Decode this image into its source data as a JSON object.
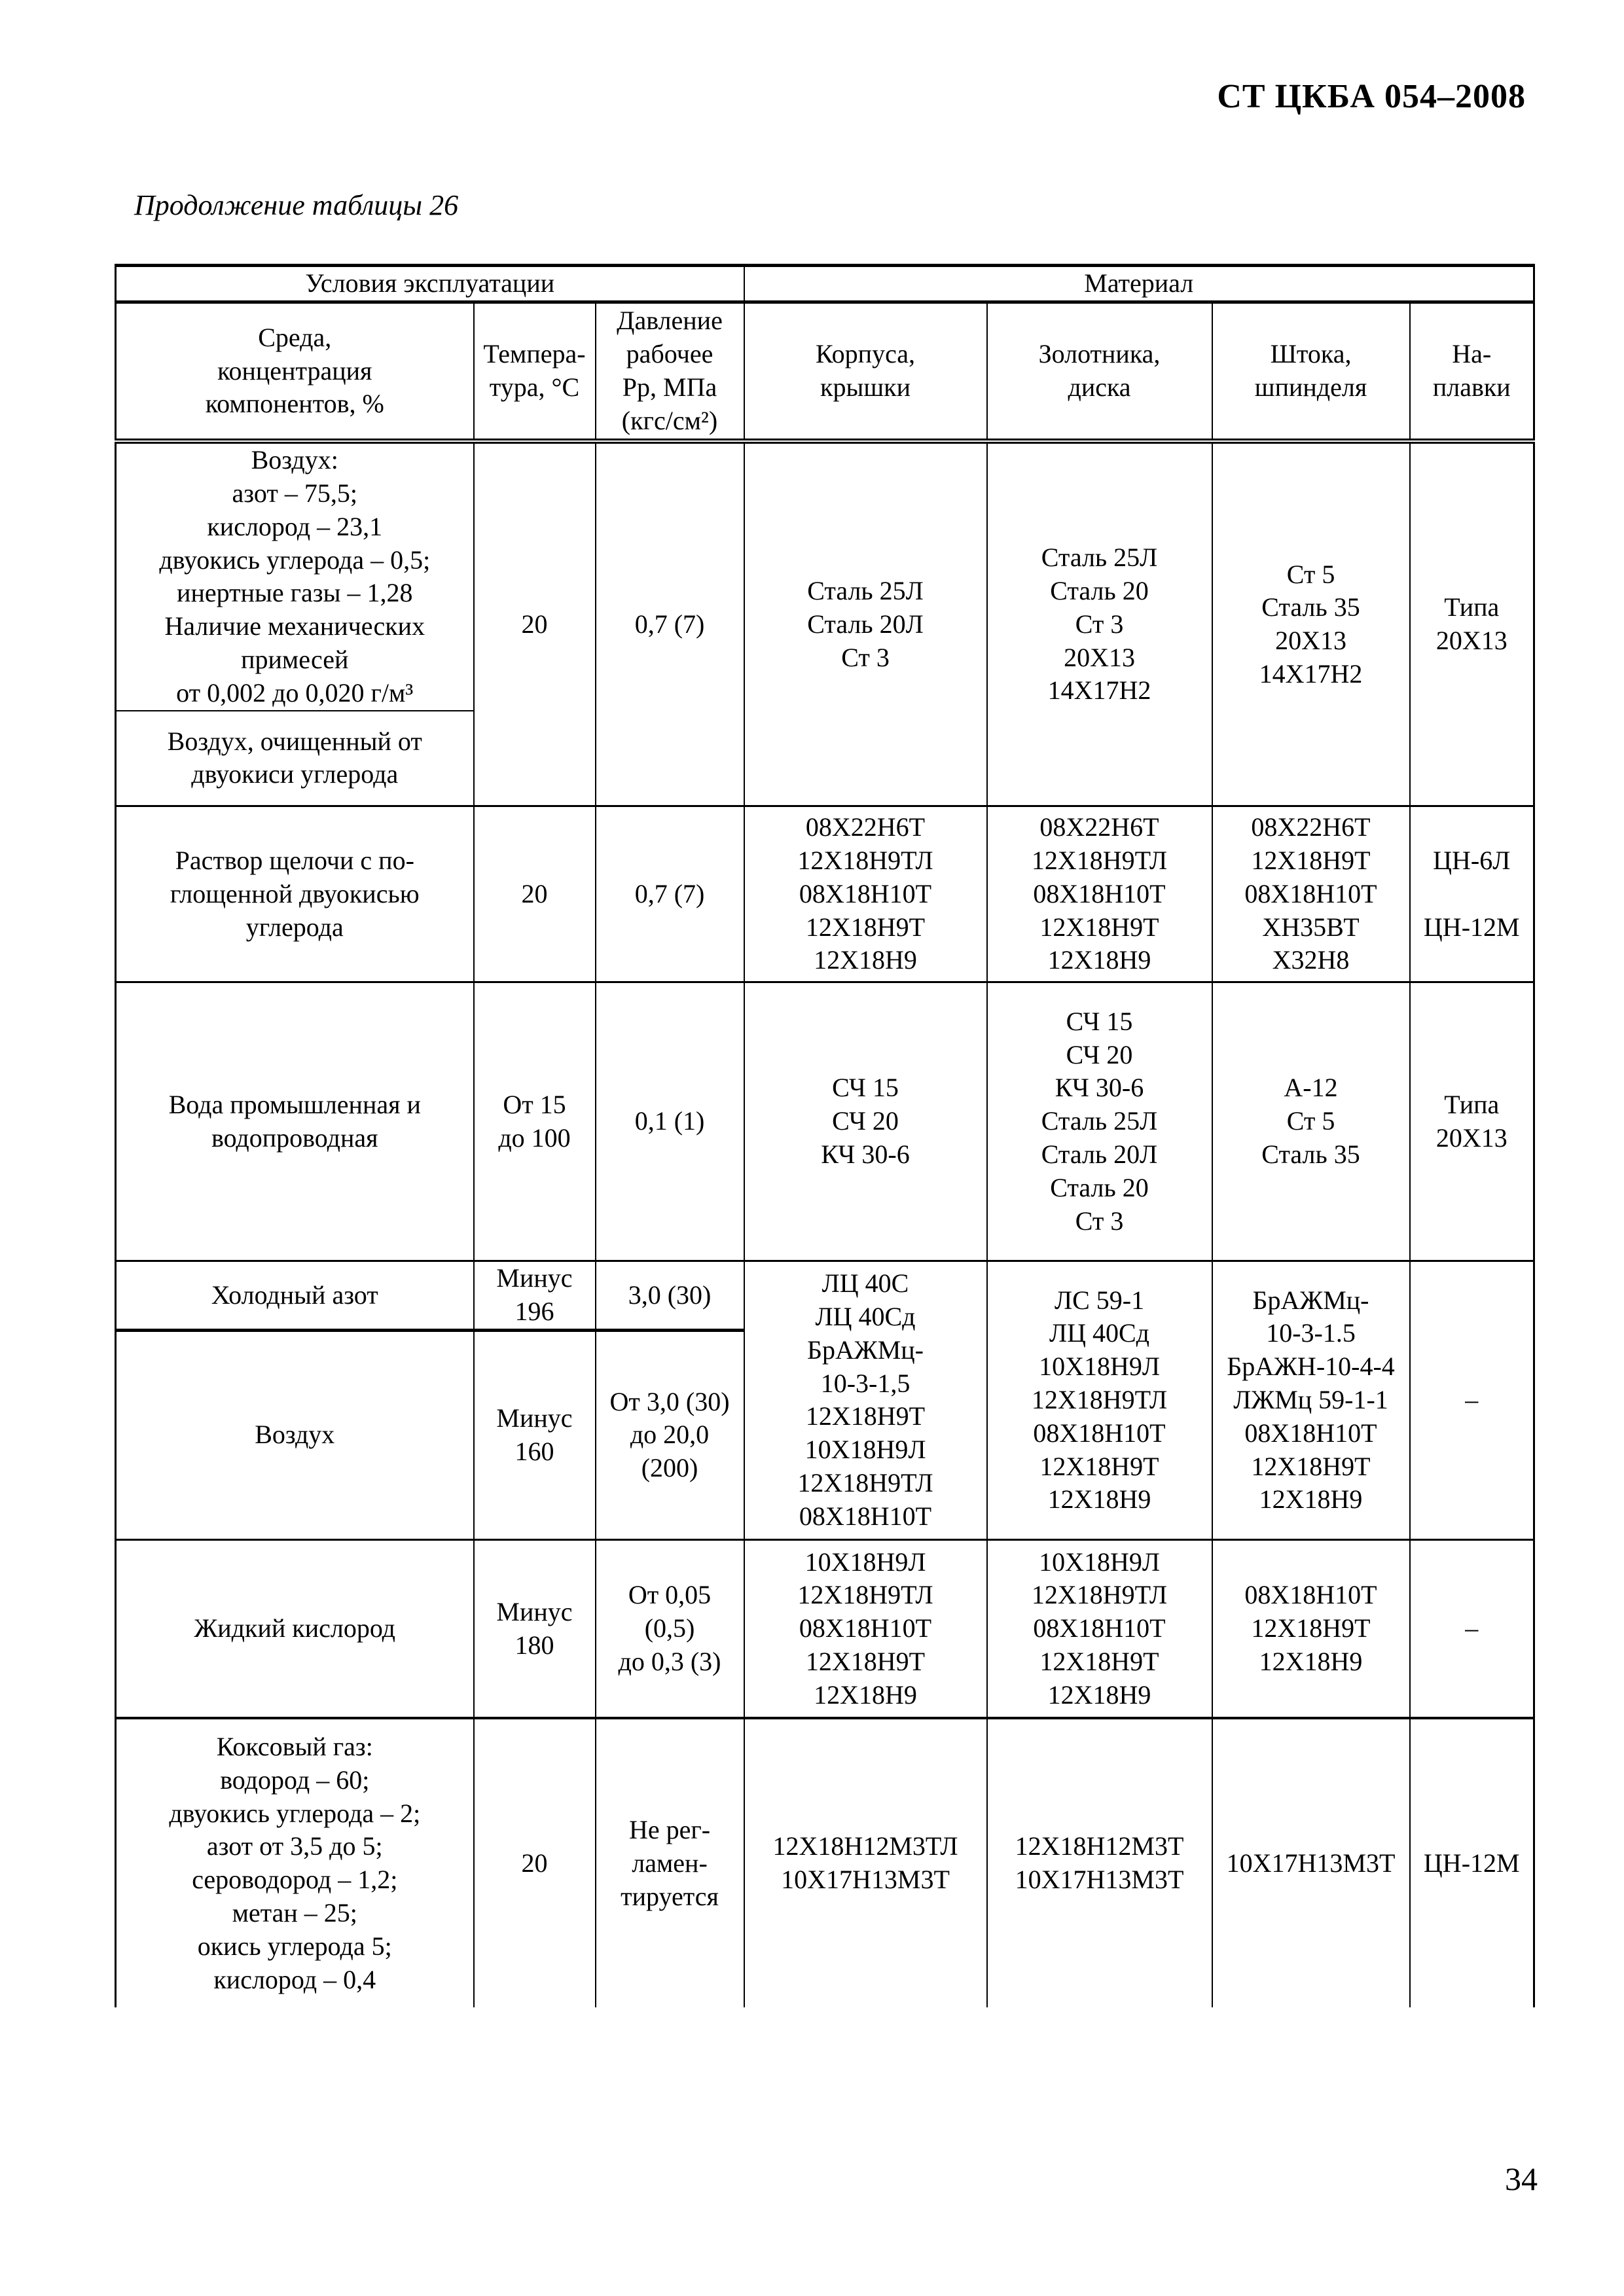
{
  "page": {
    "standard_ref": "СТ ЦКБА 054–2008",
    "caption": "Продолжение таблицы 26",
    "page_number": "34",
    "ink_color": "#000000",
    "paper_color": "#ffffff"
  },
  "table": {
    "groups": {
      "conditions": "Условия эксплуатации",
      "material": "Материал"
    },
    "columns": {
      "media": "Среда,\nконцентрация\nкомпонентов, %",
      "temperature": "Темпера-\nтура, °С",
      "pressure": "Давление\nрабочее\nРр, МПа\n(кгс/см²)",
      "body": "Корпуса,\nкрышки",
      "disc": "Золотника,\nдиска",
      "stem": "Штока,\nшпинделя",
      "overlay": "На-\nплавки"
    },
    "rows": {
      "air_normal": {
        "media_main": "Воздух:\nазот – 75,5;\nкислород – 23,1\nдвуокись углерода – 0,5;\nинертные газы – 1,28\nНаличие механических\nпримесей\nот 0,002 до 0,020 г/м³",
        "media_sub": "Воздух, очищенный от\nдвуокиси углерода",
        "temperature": "20",
        "pressure": "0,7 (7)",
        "body": "Сталь 25Л\nСталь 20Л\nСт 3",
        "disc": "Сталь 25Л\nСталь 20\nСт 3\n20Х13\n14Х17Н2",
        "stem": "Ст 5\nСталь 35\n20Х13\n14Х17Н2",
        "overlay": "Типа\n20Х13"
      },
      "alkali_solution": {
        "media": "Раствор щелочи с по-\nглощенной двуокисью\nуглерода",
        "temperature": "20",
        "pressure": "0,7 (7)",
        "body": "08Х22Н6Т\n12Х18Н9ТЛ\n08Х18Н10Т\n12Х18Н9Т\n12Х18Н9",
        "disc": "08Х22Н6Т\n12Х18Н9ТЛ\n08Х18Н10Т\n12Х18Н9Т\n12Х18Н9",
        "stem": "08Х22Н6Т\n12Х18Н9Т\n08Х18Н10Т\nХН35ВТ\nХ32Н8",
        "overlay": "ЦН-6Л\n\nЦН-12М"
      },
      "industrial_water": {
        "media": "Вода промышленная и\nводопроводная",
        "temperature": "От 15\nдо 100",
        "pressure": "0,1 (1)",
        "body": "СЧ 15\nСЧ 20\nКЧ 30-6",
        "disc": "СЧ 15\nСЧ 20\nКЧ 30-6\nСталь 25Л\nСталь 20Л\nСталь 20\nСт 3",
        "stem": "А-12\nСт 5\nСталь 35",
        "overlay": "Типа\n20Х13"
      },
      "cold_nitrogen": {
        "media": "Холодный азот",
        "temperature": "Минус\n196",
        "pressure": "3,0 (30)"
      },
      "cold_air": {
        "media": "Воздух",
        "temperature": "Минус\n160",
        "pressure": "От 3,0 (30)\nдо 20,0\n(200)"
      },
      "nitrogen_air_shared": {
        "body": "ЛЦ 40С\nЛЦ 40Сд\nБрАЖМц-\n10-3-1,5\n12Х18Н9Т\n10Х18Н9Л\n12Х18Н9ТЛ\n08Х18Н10Т",
        "disc": "ЛС 59-1\nЛЦ 40Сд\n10Х18Н9Л\n12Х18Н9ТЛ\n08Х18Н10Т\n12Х18Н9Т\n12Х18Н9",
        "stem": "БрАЖМц-\n10-3-1.5\nБрАЖН-10-4-4\nЛЖМц 59-1-1\n08Х18Н10Т\n12Х18Н9Т\n12Х18Н9",
        "overlay": "–"
      },
      "liquid_oxygen": {
        "media": "Жидкий кислород",
        "temperature": "Минус\n180",
        "pressure": "От 0,05\n(0,5)\nдо 0,3 (3)",
        "body": "10Х18Н9Л\n12Х18Н9ТЛ\n08Х18Н10Т\n12Х18Н9Т\n12Х18Н9",
        "disc": "10Х18Н9Л\n12Х18Н9ТЛ\n08Х18Н10Т\n12Х18Н9Т\n12Х18Н9",
        "stem": "08Х18Н10Т\n12Х18Н9Т\n12Х18Н9",
        "overlay": "–"
      },
      "coke_gas": {
        "media": "Коксовый газ:\nводород – 60;\nдвуокись углерода – 2;\nазот от 3,5 до 5;\nсероводород – 1,2;\nметан – 25;\nокись углерода 5;\nкислород – 0,4",
        "temperature": "20",
        "pressure": "Не рег-\nламен-\nтируется",
        "body": "12Х18Н12М3ТЛ\n10Х17Н13М3Т",
        "disc": "12Х18Н12М3Т\n10Х17Н13М3Т",
        "stem": "10Х17Н13М3Т",
        "overlay": "ЦН-12М"
      }
    }
  }
}
